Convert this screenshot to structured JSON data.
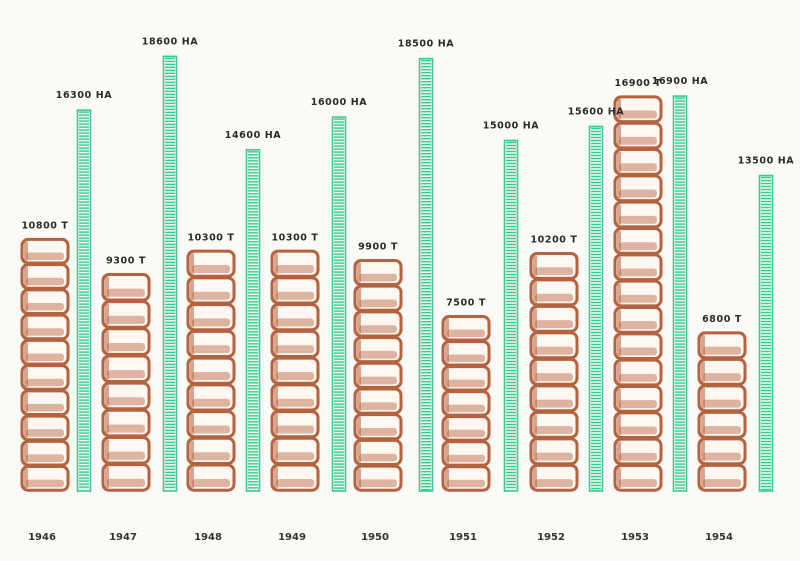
{
  "chart_data": {
    "type": "bar",
    "categories": [
      "1946",
      "1947",
      "1948",
      "1949",
      "1950",
      "1951",
      "1952",
      "1953",
      "1954"
    ],
    "series": [
      {
        "values": [
          10800,
          9300,
          10300,
          10300,
          9900,
          7500,
          10200,
          16900,
          6800
        ],
        "labels": [
          "10800 T",
          "9300 T",
          "10300 T",
          "10300 T",
          "9900 T",
          "7500 T",
          "10200 T",
          "16900 T",
          "6800 T"
        ],
        "color": "#b5623f"
      },
      {
        "values": [
          16300,
          18600,
          14600,
          16000,
          18500,
          15000,
          15600,
          16900,
          13500
        ],
        "labels": [
          "16300 HA",
          "18600 HA",
          "14600 HA",
          "16000 HA",
          "18500 HA",
          "15000 HA",
          "15600 HA",
          "16900 HA",
          "13500 HA"
        ],
        "color": "#3fc98f"
      }
    ],
    "ylim": [
      0,
      19000
    ],
    "grid": false,
    "legend": "none"
  }
}
